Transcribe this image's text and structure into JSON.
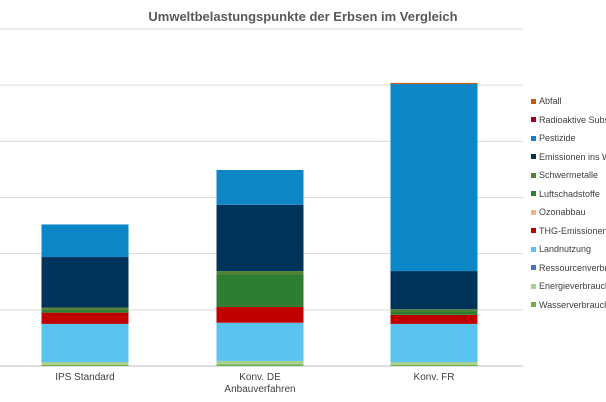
{
  "chart_data": {
    "type": "bar",
    "stacked": true,
    "title": "Umweltbelastungspunkte der Erbsen im Vergleich",
    "categories": [
      "IPS Standard",
      "Konv. DE\nAnbauverfahren",
      "Konv. FR"
    ],
    "ylim": [
      0,
      6
    ],
    "grid": true,
    "legend_position": "right",
    "series": [
      {
        "name": "Wasserverbrauch",
        "color": "#70ad47",
        "values": [
          0.02,
          0.03,
          0.02
        ]
      },
      {
        "name": "Energieverbrauch",
        "color": "#a9d18e",
        "values": [
          0.05,
          0.06,
          0.05
        ]
      },
      {
        "name": "Ressourcenverbrauch",
        "color": "#4472c4",
        "values": [
          0.0,
          0.0,
          0.0
        ]
      },
      {
        "name": "Landnutzung",
        "color": "#5bc3f0",
        "values": [
          0.68,
          0.68,
          0.68
        ]
      },
      {
        "name": "THG-Emissionen",
        "color": "#c00000",
        "values": [
          0.2,
          0.28,
          0.16
        ]
      },
      {
        "name": "Ozonabbau",
        "color": "#f4b183",
        "values": [
          0.0,
          0.0,
          0.0
        ]
      },
      {
        "name": "Luftschadstoffe",
        "color": "#2e7d32",
        "values": [
          0.05,
          0.58,
          0.06
        ]
      },
      {
        "name": "Schwermetalle",
        "color": "#548235",
        "values": [
          0.04,
          0.06,
          0.04
        ]
      },
      {
        "name": "Emissionen ins W",
        "color": "#003359",
        "values": [
          0.9,
          1.18,
          0.68
        ]
      },
      {
        "name": "Pestizide",
        "color": "#0d86c6",
        "values": [
          0.58,
          0.62,
          3.33
        ]
      },
      {
        "name": "Radioaktive Subst",
        "color": "#a50021",
        "values": [
          0.0,
          0.0,
          0.0
        ]
      },
      {
        "name": "Abfall",
        "color": "#c55a11",
        "values": [
          0.0,
          0.0,
          0.02
        ]
      }
    ]
  }
}
